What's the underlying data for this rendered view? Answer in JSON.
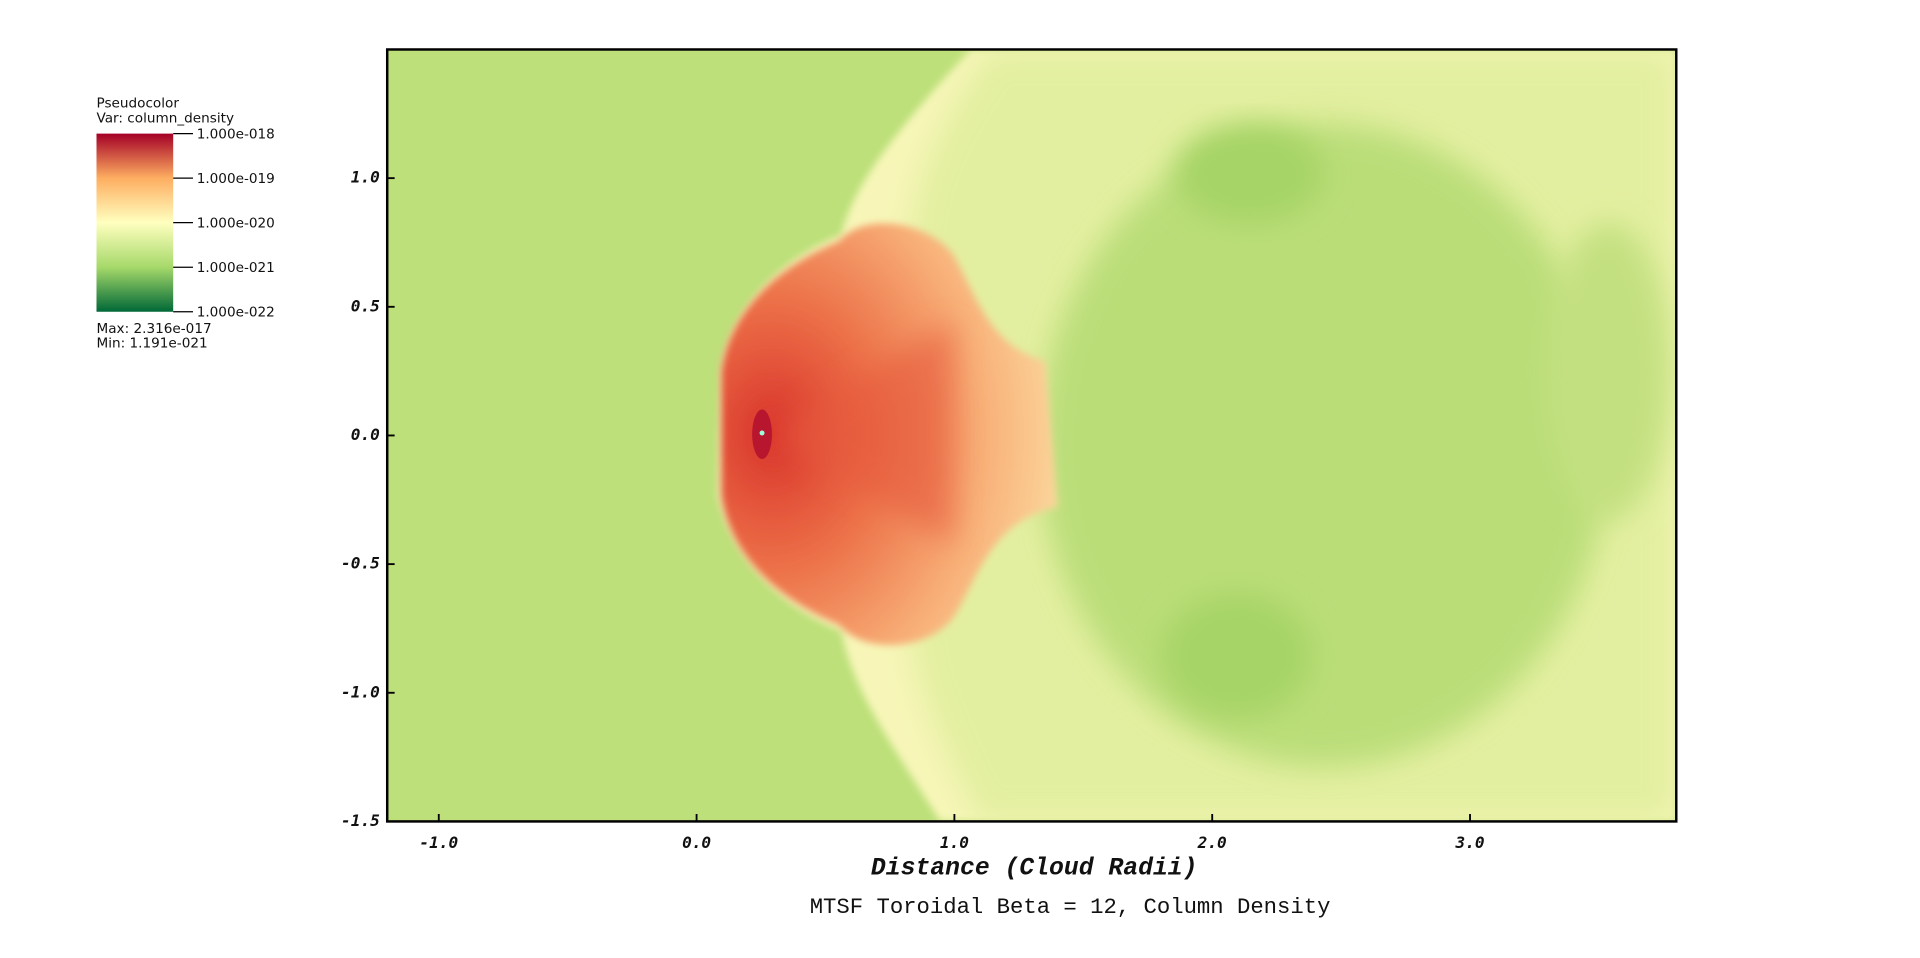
{
  "chart_data": {
    "type": "heatmap",
    "title": "MTSF Toroidal Beta = 12, Column Density",
    "xlabel": "Distance (Cloud Radii)",
    "xlim": [
      -1.2,
      3.8
    ],
    "ylim": [
      -1.5,
      1.5
    ],
    "xticks": [
      {
        "value": -1,
        "label": "-1.0"
      },
      {
        "value": 0,
        "label": "0.0"
      },
      {
        "value": 1,
        "label": "1.0"
      },
      {
        "value": 2,
        "label": "2.0"
      },
      {
        "value": 3,
        "label": "3.0"
      }
    ],
    "yticks": [
      {
        "value": -1.5,
        "label": "-1.5"
      },
      {
        "value": -1,
        "label": "-1.0"
      },
      {
        "value": -0.5,
        "label": "-0.5"
      },
      {
        "value": 0,
        "label": "0.0"
      },
      {
        "value": 0.5,
        "label": "0.5"
      },
      {
        "value": 1,
        "label": "1.0"
      }
    ],
    "colorbar": {
      "title": "Pseudocolor",
      "variable": "Var: column_density",
      "log": true,
      "lim": [
        1e-22,
        1e-18
      ],
      "colors": [
        "#006837",
        "#a6d96a",
        "#ffffbf",
        "#fdae61",
        "#a50026"
      ],
      "ticks": [
        {
          "value": 1e-18,
          "label": "1.000e-018"
        },
        {
          "value": 1e-19,
          "label": "1.000e-019"
        },
        {
          "value": 1e-20,
          "label": "1.000e-020"
        },
        {
          "value": 1e-21,
          "label": "1.000e-021"
        },
        {
          "value": 1e-22,
          "label": "1.000e-022"
        }
      ],
      "max_label": "Max:  2.316e-017",
      "min_label": "Min:  1.191e-021"
    }
  }
}
